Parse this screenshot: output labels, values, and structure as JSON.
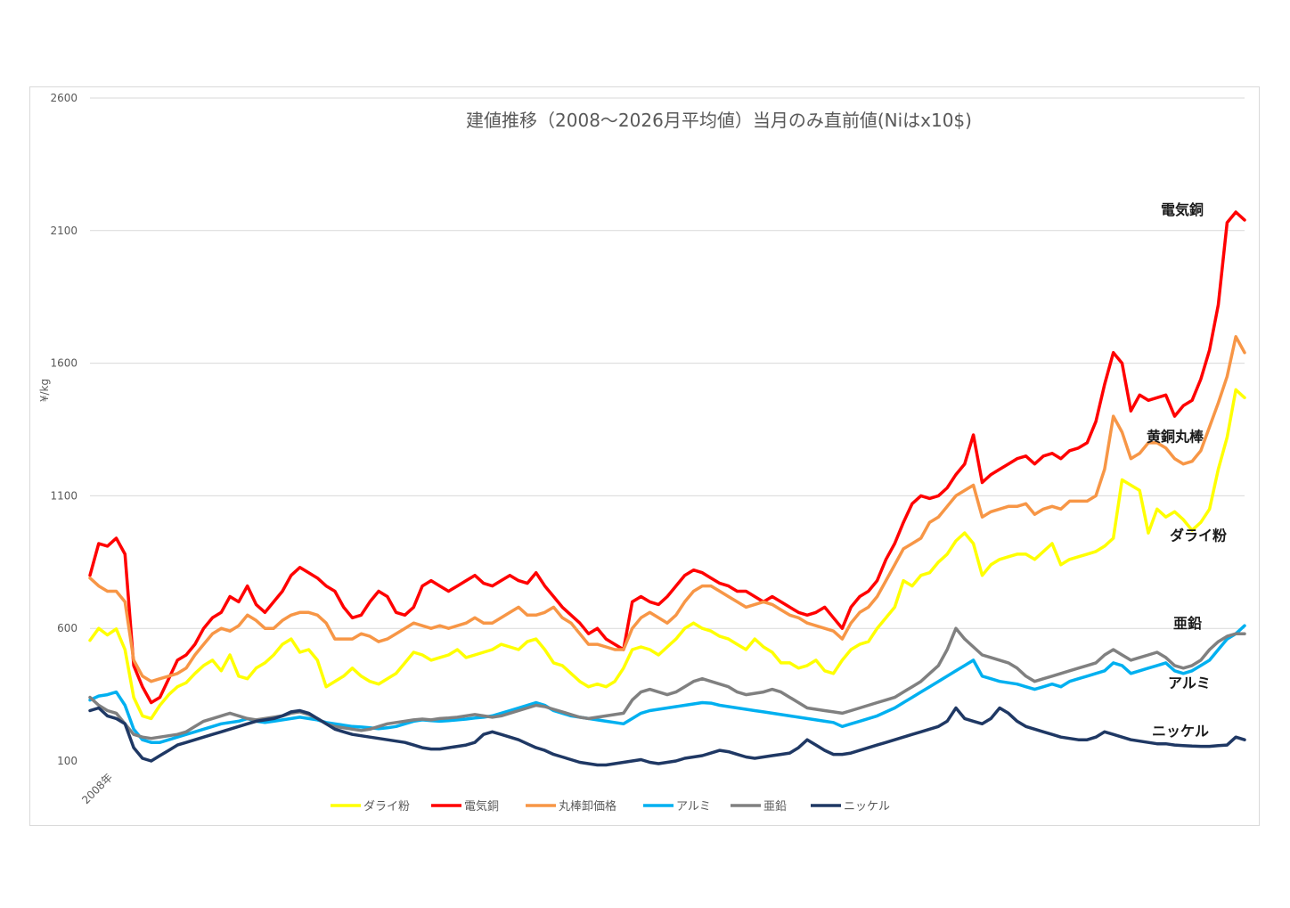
{
  "chart_data": {
    "type": "line",
    "title": "建値推移（2008～2026月平均値）当月のみ直前値(Niはx10$)",
    "ylabel": "¥/kg",
    "xlabel": "",
    "x_start_label": "2008年",
    "ylim": [
      100,
      2600
    ],
    "yticks": [
      100,
      600,
      1100,
      1600,
      2100,
      2600
    ],
    "x_range_years": [
      2008,
      2026
    ],
    "grid": true,
    "legend_position": "bottom",
    "colors": {
      "dry_powder": "#ffff00",
      "copper": "#ff0000",
      "brass_rod": "#f79646",
      "aluminum": "#00b0f0",
      "zinc": "#808080",
      "nickel": "#1f3864"
    },
    "series": [
      {
        "key": "dry_powder",
        "name": "ダライ粉",
        "color": "#ffff00",
        "values": [
          555,
          600,
          575,
          598,
          520,
          340,
          270,
          260,
          310,
          350,
          380,
          395,
          430,
          460,
          480,
          440,
          500,
          420,
          410,
          450,
          470,
          500,
          540,
          560,
          510,
          520,
          480,
          380,
          400,
          420,
          450,
          420,
          400,
          390,
          410,
          430,
          470,
          510,
          500,
          480,
          490,
          500,
          520,
          490,
          500,
          510,
          520,
          540,
          530,
          520,
          550,
          560,
          520,
          470,
          460,
          430,
          400,
          380,
          390,
          380,
          400,
          450,
          520,
          530,
          520,
          500,
          530,
          560,
          600,
          620,
          600,
          590,
          570,
          560,
          540,
          520,
          560,
          530,
          510,
          470,
          470,
          450,
          460,
          480,
          440,
          430,
          480,
          520,
          540,
          550,
          600,
          640,
          680,
          780,
          760,
          800,
          810,
          850,
          880,
          930,
          960,
          920,
          800,
          840,
          860,
          870,
          880,
          880,
          860,
          890,
          920,
          840,
          860,
          870,
          880,
          890,
          910,
          940,
          1160,
          1140,
          1120,
          960,
          1050,
          1020,
          1040,
          1010,
          970,
          1000,
          1050,
          1200,
          1320,
          1500,
          1470
        ]
      },
      {
        "key": "copper",
        "name": "電気銅",
        "color": "#ff0000",
        "values": [
          800,
          920,
          910,
          940,
          880,
          460,
          380,
          320,
          340,
          410,
          480,
          500,
          540,
          600,
          640,
          660,
          720,
          700,
          760,
          690,
          660,
          700,
          740,
          800,
          830,
          810,
          790,
          760,
          740,
          680,
          640,
          650,
          700,
          740,
          720,
          660,
          650,
          680,
          760,
          780,
          760,
          740,
          760,
          780,
          800,
          770,
          760,
          780,
          800,
          780,
          770,
          810,
          760,
          720,
          680,
          650,
          620,
          580,
          600,
          560,
          540,
          520,
          700,
          720,
          700,
          690,
          720,
          760,
          800,
          820,
          810,
          790,
          770,
          760,
          740,
          740,
          720,
          700,
          720,
          700,
          680,
          660,
          650,
          660,
          680,
          640,
          600,
          680,
          720,
          740,
          780,
          860,
          920,
          1000,
          1070,
          1100,
          1090,
          1100,
          1130,
          1180,
          1220,
          1330,
          1150,
          1180,
          1200,
          1220,
          1240,
          1250,
          1220,
          1250,
          1260,
          1240,
          1270,
          1280,
          1300,
          1380,
          1520,
          1640,
          1600,
          1420,
          1480,
          1460,
          1470,
          1480,
          1400,
          1440,
          1460,
          1540,
          1650,
          1820,
          2130,
          2170,
          2140
        ]
      },
      {
        "key": "brass_rod",
        "name": "丸棒卸価格",
        "color": "#f79646",
        "values": [
          790,
          760,
          740,
          740,
          700,
          480,
          420,
          400,
          410,
          420,
          430,
          450,
          500,
          540,
          580,
          600,
          590,
          610,
          650,
          630,
          600,
          600,
          630,
          650,
          660,
          660,
          650,
          620,
          560,
          560,
          560,
          580,
          570,
          550,
          560,
          580,
          600,
          620,
          610,
          600,
          610,
          600,
          610,
          620,
          640,
          620,
          620,
          640,
          660,
          680,
          650,
          650,
          660,
          680,
          640,
          620,
          580,
          540,
          540,
          530,
          520,
          520,
          600,
          640,
          660,
          640,
          620,
          650,
          700,
          740,
          760,
          760,
          740,
          720,
          700,
          680,
          690,
          700,
          690,
          670,
          650,
          640,
          620,
          610,
          600,
          590,
          560,
          620,
          660,
          680,
          720,
          780,
          840,
          900,
          920,
          940,
          1000,
          1020,
          1060,
          1100,
          1120,
          1140,
          1020,
          1040,
          1050,
          1060,
          1060,
          1070,
          1030,
          1050,
          1060,
          1050,
          1080,
          1080,
          1080,
          1100,
          1200,
          1400,
          1340,
          1240,
          1260,
          1300,
          1300,
          1280,
          1240,
          1220,
          1230,
          1270,
          1360,
          1450,
          1550,
          1700,
          1640
        ]
      },
      {
        "key": "aluminum",
        "name": "アルミ",
        "color": "#00b0f0",
        "values": [
          330,
          345,
          350,
          360,
          310,
          220,
          180,
          170,
          170,
          180,
          190,
          200,
          210,
          220,
          230,
          240,
          245,
          250,
          260,
          250,
          245,
          250,
          255,
          260,
          265,
          260,
          255,
          245,
          240,
          235,
          230,
          228,
          225,
          222,
          225,
          230,
          240,
          250,
          255,
          252,
          250,
          252,
          255,
          258,
          262,
          265,
          270,
          280,
          290,
          300,
          310,
          320,
          310,
          290,
          280,
          270,
          265,
          260,
          255,
          250,
          245,
          240,
          260,
          280,
          290,
          295,
          300,
          305,
          310,
          315,
          320,
          318,
          310,
          305,
          300,
          295,
          290,
          285,
          280,
          275,
          270,
          265,
          260,
          255,
          250,
          245,
          230,
          240,
          250,
          260,
          270,
          285,
          300,
          320,
          340,
          360,
          380,
          400,
          420,
          440,
          460,
          480,
          420,
          410,
          400,
          395,
          390,
          380,
          370,
          380,
          390,
          380,
          400,
          410,
          420,
          430,
          440,
          470,
          460,
          430,
          440,
          450,
          460,
          470,
          440,
          430,
          440,
          460,
          480,
          520,
          560,
          580,
          610
        ]
      },
      {
        "key": "zinc",
        "name": "亜鉛",
        "color": "#808080",
        "values": [
          340,
          310,
          290,
          280,
          240,
          200,
          190,
          185,
          190,
          195,
          200,
          210,
          230,
          250,
          260,
          270,
          280,
          270,
          260,
          255,
          260,
          265,
          270,
          280,
          285,
          275,
          260,
          240,
          230,
          225,
          220,
          215,
          220,
          230,
          240,
          245,
          250,
          255,
          258,
          255,
          260,
          262,
          265,
          270,
          275,
          270,
          265,
          270,
          280,
          290,
          300,
          310,
          305,
          295,
          285,
          275,
          265,
          260,
          265,
          270,
          275,
          280,
          330,
          360,
          370,
          360,
          350,
          360,
          380,
          400,
          410,
          400,
          390,
          380,
          360,
          350,
          355,
          360,
          370,
          360,
          340,
          320,
          300,
          295,
          290,
          285,
          280,
          290,
          300,
          310,
          320,
          330,
          340,
          360,
          380,
          400,
          430,
          460,
          520,
          600,
          560,
          530,
          500,
          490,
          480,
          470,
          450,
          420,
          400,
          410,
          420,
          430,
          440,
          450,
          460,
          470,
          500,
          520,
          500,
          480,
          490,
          500,
          510,
          490,
          460,
          450,
          460,
          480,
          520,
          550,
          570,
          580,
          580
        ]
      },
      {
        "key": "nickel",
        "name": "ニッケル",
        "color": "#1f3864",
        "values": [
          290,
          300,
          270,
          260,
          240,
          150,
          110,
          100,
          120,
          140,
          160,
          170,
          180,
          190,
          200,
          210,
          220,
          230,
          240,
          250,
          255,
          260,
          270,
          285,
          290,
          280,
          260,
          240,
          220,
          210,
          200,
          195,
          190,
          185,
          180,
          175,
          170,
          160,
          150,
          145,
          145,
          150,
          155,
          160,
          170,
          200,
          210,
          200,
          190,
          180,
          165,
          150,
          140,
          125,
          115,
          105,
          95,
          90,
          85,
          85,
          90,
          95,
          100,
          105,
          95,
          90,
          95,
          100,
          110,
          115,
          120,
          130,
          140,
          135,
          125,
          115,
          110,
          115,
          120,
          125,
          130,
          150,
          180,
          160,
          140,
          125,
          125,
          130,
          140,
          150,
          160,
          170,
          180,
          190,
          200,
          210,
          220,
          230,
          250,
          300,
          260,
          250,
          240,
          260,
          300,
          280,
          250,
          230,
          220,
          210,
          200,
          190,
          185,
          180,
          180,
          190,
          210,
          200,
          190,
          180,
          175,
          170,
          165,
          165,
          160,
          158,
          156,
          155,
          155,
          158,
          160,
          190,
          180
        ]
      }
    ],
    "annotations": [
      {
        "series": "copper",
        "label": "電気銅"
      },
      {
        "series": "brass_rod",
        "label": "黄銅丸棒"
      },
      {
        "series": "dry_powder",
        "label": "ダライ粉"
      },
      {
        "series": "zinc",
        "label": "亜鉛"
      },
      {
        "series": "aluminum",
        "label": "アルミ"
      },
      {
        "series": "nickel",
        "label": "ニッケル"
      }
    ]
  }
}
